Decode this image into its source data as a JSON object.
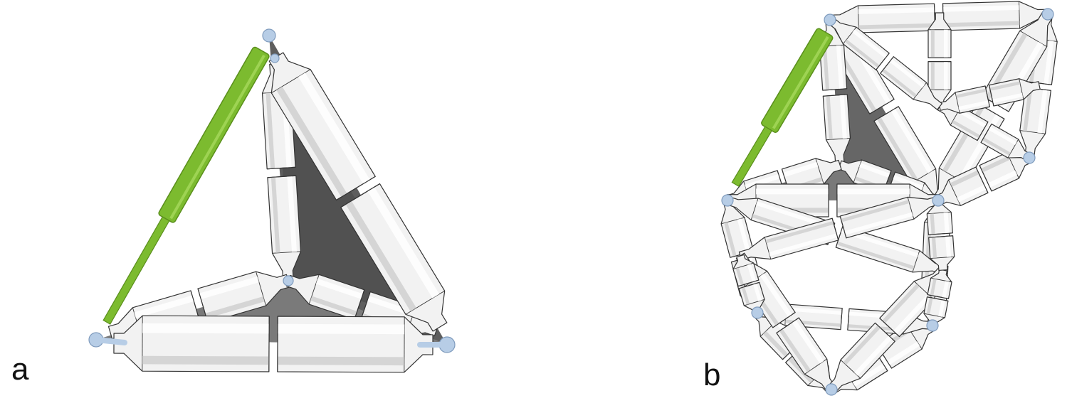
{
  "figure": {
    "panels": [
      {
        "id": "a",
        "label": "a"
      },
      {
        "id": "b",
        "label": "b"
      }
    ],
    "colors": {
      "background": "#ffffff",
      "actuator": "#7cbb2f",
      "actuator_dark": "#5a8f1c",
      "member": "#f2f2f2",
      "member_outline": "#333333",
      "shade_face": "#555555",
      "joint": "#b7cde6",
      "joint_outline": "#7f9bbd"
    }
  }
}
